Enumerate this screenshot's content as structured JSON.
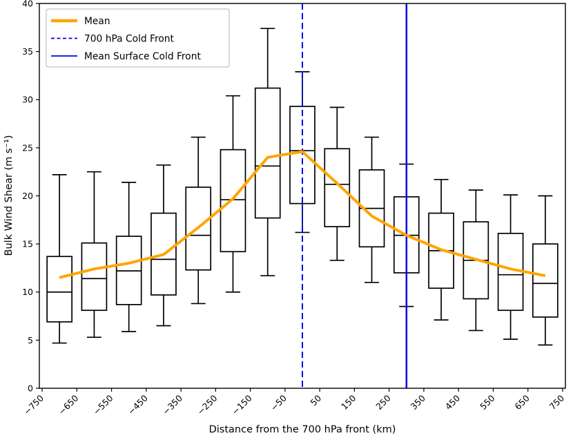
{
  "chart_data": {
    "type": "box",
    "title": "",
    "xlabel": "Distance from the 700 hPa front (km)",
    "ylabel": "Bulk Wind Shear (m s⁻¹)",
    "xlim": [
      -758,
      758
    ],
    "ylim": [
      0,
      40
    ],
    "grid": false,
    "background": "#ffffff",
    "box_edge_color": "#000000",
    "box_fill_color": "#ffffff",
    "y_tick_values": [
      0,
      5,
      10,
      15,
      20,
      25,
      30,
      35,
      40
    ],
    "y_tick_labels": [
      "0",
      "5",
      "10",
      "15",
      "20",
      "25",
      "30",
      "35",
      "40"
    ],
    "x_tick_values": [
      -750,
      -650,
      -550,
      -450,
      -350,
      -250,
      -150,
      -50,
      50,
      150,
      250,
      350,
      450,
      550,
      650,
      750
    ],
    "x_tick_labels": [
      "−750",
      "−650",
      "−550",
      "−450",
      "−350",
      "−250",
      "−150",
      "−50",
      "50",
      "150",
      "250",
      "350",
      "450",
      "550",
      "650",
      "750"
    ],
    "boxes": [
      {
        "x_km": -700,
        "whislo": 4.7,
        "q1": 6.9,
        "med": 10.0,
        "q3": 13.7,
        "whishi": 22.2
      },
      {
        "x_km": -600,
        "whislo": 5.3,
        "q1": 8.1,
        "med": 11.4,
        "q3": 15.1,
        "whishi": 22.5
      },
      {
        "x_km": -500,
        "whislo": 5.9,
        "q1": 8.7,
        "med": 12.2,
        "q3": 15.8,
        "whishi": 21.4
      },
      {
        "x_km": -400,
        "whislo": 6.5,
        "q1": 9.7,
        "med": 13.4,
        "q3": 18.2,
        "whishi": 23.2
      },
      {
        "x_km": -300,
        "whislo": 8.8,
        "q1": 12.3,
        "med": 15.9,
        "q3": 20.9,
        "whishi": 26.1
      },
      {
        "x_km": -200,
        "whislo": 10.0,
        "q1": 14.2,
        "med": 19.6,
        "q3": 24.8,
        "whishi": 30.4
      },
      {
        "x_km": -100,
        "whislo": 11.7,
        "q1": 17.7,
        "med": 23.1,
        "q3": 31.2,
        "whishi": 37.4
      },
      {
        "x_km": 0,
        "whislo": 16.2,
        "q1": 19.2,
        "med": 24.7,
        "q3": 29.3,
        "whishi": 32.9
      },
      {
        "x_km": 100,
        "whislo": 13.3,
        "q1": 16.8,
        "med": 21.2,
        "q3": 24.9,
        "whishi": 29.2
      },
      {
        "x_km": 200,
        "whislo": 11.0,
        "q1": 14.7,
        "med": 18.7,
        "q3": 22.7,
        "whishi": 26.1
      },
      {
        "x_km": 300,
        "whislo": 8.5,
        "q1": 12.0,
        "med": 15.9,
        "q3": 19.9,
        "whishi": 23.3
      },
      {
        "x_km": 400,
        "whislo": 7.1,
        "q1": 10.4,
        "med": 14.3,
        "q3": 18.2,
        "whishi": 21.7
      },
      {
        "x_km": 500,
        "whislo": 6.0,
        "q1": 9.3,
        "med": 13.3,
        "q3": 17.3,
        "whishi": 20.6
      },
      {
        "x_km": 600,
        "whislo": 5.1,
        "q1": 8.1,
        "med": 11.8,
        "q3": 16.1,
        "whishi": 20.1
      },
      {
        "x_km": 700,
        "whislo": 4.5,
        "q1": 7.4,
        "med": 10.9,
        "q3": 15.0,
        "whishi": 20.0
      }
    ],
    "mean_line": {
      "label": "Mean",
      "color": "#FFA500",
      "x_km": [
        -700,
        -600,
        -500,
        -400,
        -300,
        -200,
        -100,
        0,
        100,
        200,
        300,
        400,
        500,
        600,
        700
      ],
      "values": [
        11.5,
        12.4,
        13.0,
        13.9,
        16.7,
        19.7,
        24.0,
        24.6,
        21.3,
        17.9,
        15.9,
        14.4,
        13.4,
        12.4,
        11.7
      ]
    },
    "vlines": [
      {
        "label": "700 hPa Cold Front",
        "x_km": 0,
        "style": "dashed",
        "color": "#0000EE"
      },
      {
        "label": "Mean Surface Cold Front",
        "x_km": 300,
        "style": "solid",
        "color": "#0000EE"
      }
    ],
    "legend": {
      "position": "upper left",
      "entries": [
        {
          "label": "Mean",
          "color": "#FFA500",
          "style": "solid",
          "width": 4.5
        },
        {
          "label": "700 hPa Cold Front",
          "color": "#0000EE",
          "style": "dashed",
          "width": 1.8
        },
        {
          "label": "Mean Surface Cold Front",
          "color": "#0000EE",
          "style": "solid",
          "width": 1.8
        }
      ]
    }
  }
}
